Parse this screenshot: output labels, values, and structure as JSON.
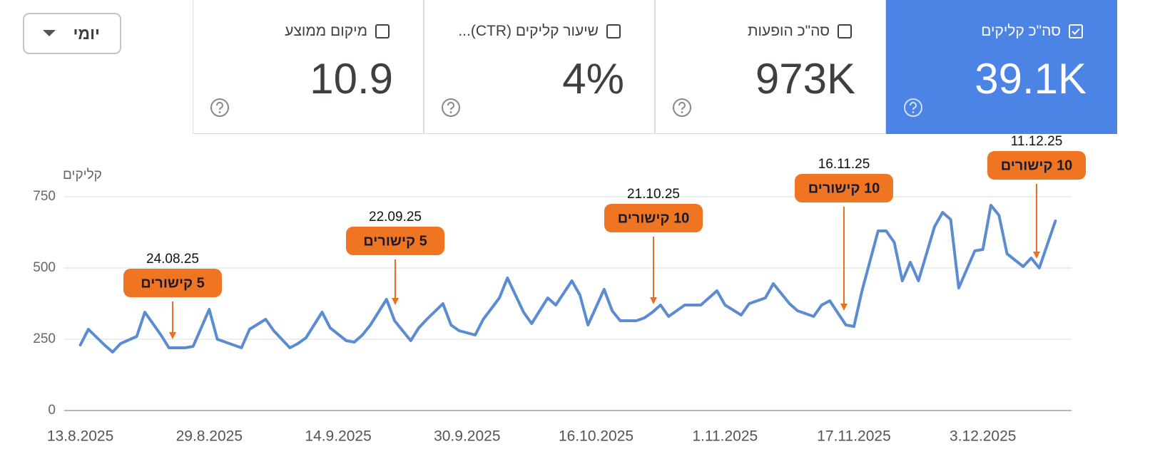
{
  "toolbar": {
    "period": "יומי"
  },
  "cards": [
    {
      "label": "סה\"כ קליקים",
      "value": "39.1K",
      "checked": true
    },
    {
      "label": "סה\"כ הופעות",
      "value": "973K",
      "checked": false
    },
    {
      "label": "שיעור קליקים (CTR)...",
      "value": "4%",
      "checked": false
    },
    {
      "label": "מיקום ממוצע",
      "value": "10.9",
      "checked": false
    }
  ],
  "chart_data": {
    "type": "line",
    "y_label": "קליקים",
    "color": "#5b8bd0",
    "grid": true,
    "ylim": [
      0,
      750
    ],
    "yticks": [
      0,
      250,
      500,
      750
    ],
    "xlim": [
      "11.8.2025",
      "14.12.2025"
    ],
    "xticks": [
      "13.8.2025",
      "29.8.2025",
      "14.9.2025",
      "30.9.2025",
      "16.10.2025",
      "1.11.2025",
      "17.11.2025",
      "3.12.2025"
    ],
    "x": [
      "13.8.2025",
      "14.8.2025",
      "16.8.2025",
      "17.8.2025",
      "18.8.2025",
      "20.8.2025",
      "21.8.2025",
      "23.8.2025",
      "24.8.2025",
      "26.8.2025",
      "27.8.2025",
      "29.8.2025",
      "30.8.2025",
      "1.9.2025",
      "2.9.2025",
      "3.9.2025",
      "5.9.2025",
      "6.9.2025",
      "8.9.2025",
      "9.9.2025",
      "10.9.2025",
      "12.9.2025",
      "13.9.2025",
      "15.9.2025",
      "16.9.2025",
      "17.9.2025",
      "18.9.2025",
      "20.9.2025",
      "21.9.2025",
      "23.9.2025",
      "24.9.2025",
      "25.9.2025",
      "27.9.2025",
      "28.9.2025",
      "29.9.2025",
      "1.10.2025",
      "2.10.2025",
      "4.10.2025",
      "5.10.2025",
      "7.10.2025",
      "8.10.2025",
      "10.10.2025",
      "11.10.2025",
      "13.10.2025",
      "14.10.2025",
      "15.10.2025",
      "17.10.2025",
      "18.10.2025",
      "19.10.2025",
      "21.10.2025",
      "22.10.2025",
      "23.10.2025",
      "24.10.2025",
      "25.10.2025",
      "27.10.2025",
      "28.10.2025",
      "29.10.2025",
      "31.10.2025",
      "1.11.2025",
      "3.11.2025",
      "4.11.2025",
      "6.11.2025",
      "7.11.2025",
      "9.11.2025",
      "10.11.2025",
      "12.11.2025",
      "13.11.2025",
      "14.11.2025",
      "16.11.2025",
      "17.11.2025",
      "18.11.2025",
      "20.11.2025",
      "21.11.2025",
      "22.11.2025",
      "23.11.2025",
      "24.11.2025",
      "25.11.2025",
      "27.11.2025",
      "28.11.2025",
      "29.11.2025",
      "30.11.2025",
      "2.12.2025",
      "3.12.2025",
      "4.12.2025",
      "5.12.2025",
      "6.12.2025",
      "8.12.2025",
      "9.12.2025",
      "10.12.2025",
      "12.12.2025"
    ],
    "values": [
      230,
      285,
      230,
      205,
      235,
      260,
      345,
      265,
      220,
      220,
      225,
      355,
      250,
      230,
      220,
      285,
      320,
      280,
      220,
      235,
      255,
      345,
      290,
      245,
      240,
      265,
      300,
      390,
      315,
      245,
      290,
      320,
      375,
      300,
      280,
      265,
      320,
      395,
      465,
      345,
      305,
      395,
      370,
      455,
      405,
      300,
      425,
      350,
      315,
      315,
      325,
      345,
      370,
      330,
      370,
      370,
      370,
      420,
      370,
      335,
      375,
      395,
      445,
      375,
      350,
      330,
      370,
      385,
      300,
      295,
      420,
      630,
      630,
      590,
      455,
      520,
      455,
      645,
      695,
      670,
      430,
      560,
      565,
      720,
      685,
      550,
      505,
      535,
      500,
      665
    ],
    "annotations": [
      {
        "date": "24.08.25",
        "text": "5 קישורים"
      },
      {
        "date": "22.09.25",
        "text": "5 קישורים"
      },
      {
        "date": "21.10.25",
        "text": "10 קישורים"
      },
      {
        "date": "16.11.25",
        "text": "10 קישורים"
      },
      {
        "date": "11.12.25",
        "text": "10 קישורים"
      }
    ]
  }
}
